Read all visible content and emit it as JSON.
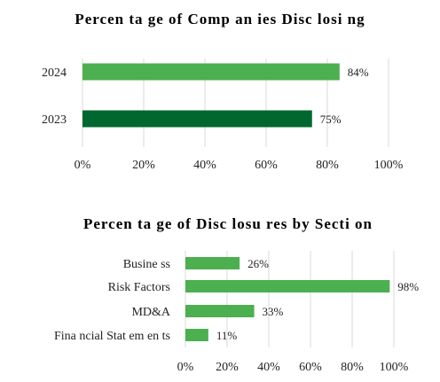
{
  "colors": {
    "bar_light": "#4caf50",
    "bar_dark": "#00672f"
  },
  "chart_data": [
    {
      "type": "bar",
      "orientation": "horizontal",
      "title": "Percen ta ge of Comp an ies Disc losi ng",
      "categories": [
        "2024",
        "2023"
      ],
      "values": [
        84,
        75
      ],
      "data_labels": [
        "84%",
        "75%"
      ],
      "bar_colors": [
        "#4caf50",
        "#00672f"
      ],
      "xlim": [
        0,
        100
      ],
      "x_ticks": [
        0,
        20,
        40,
        60,
        80,
        100
      ],
      "x_tick_labels": [
        "0%",
        "20%",
        "40%",
        "60%",
        "80%",
        "100%"
      ],
      "grid": true,
      "legend": "none"
    },
    {
      "type": "bar",
      "orientation": "horizontal",
      "title": "Percen ta ge of Disc losu res by Secti on",
      "categories": [
        "Busine ss",
        "Risk Factors",
        "MD&A",
        "Fina ncial Stat em en ts"
      ],
      "values": [
        26,
        98,
        33,
        11
      ],
      "data_labels": [
        "26%",
        "98%",
        "33%",
        "11%"
      ],
      "bar_colors": [
        "#4caf50",
        "#4caf50",
        "#4caf50",
        "#4caf50"
      ],
      "xlim": [
        0,
        100
      ],
      "x_ticks": [
        0,
        20,
        40,
        60,
        80,
        100
      ],
      "x_tick_labels": [
        "0%",
        "20%",
        "40%",
        "60%",
        "80%",
        "100%"
      ],
      "grid": true,
      "legend": "none"
    }
  ]
}
